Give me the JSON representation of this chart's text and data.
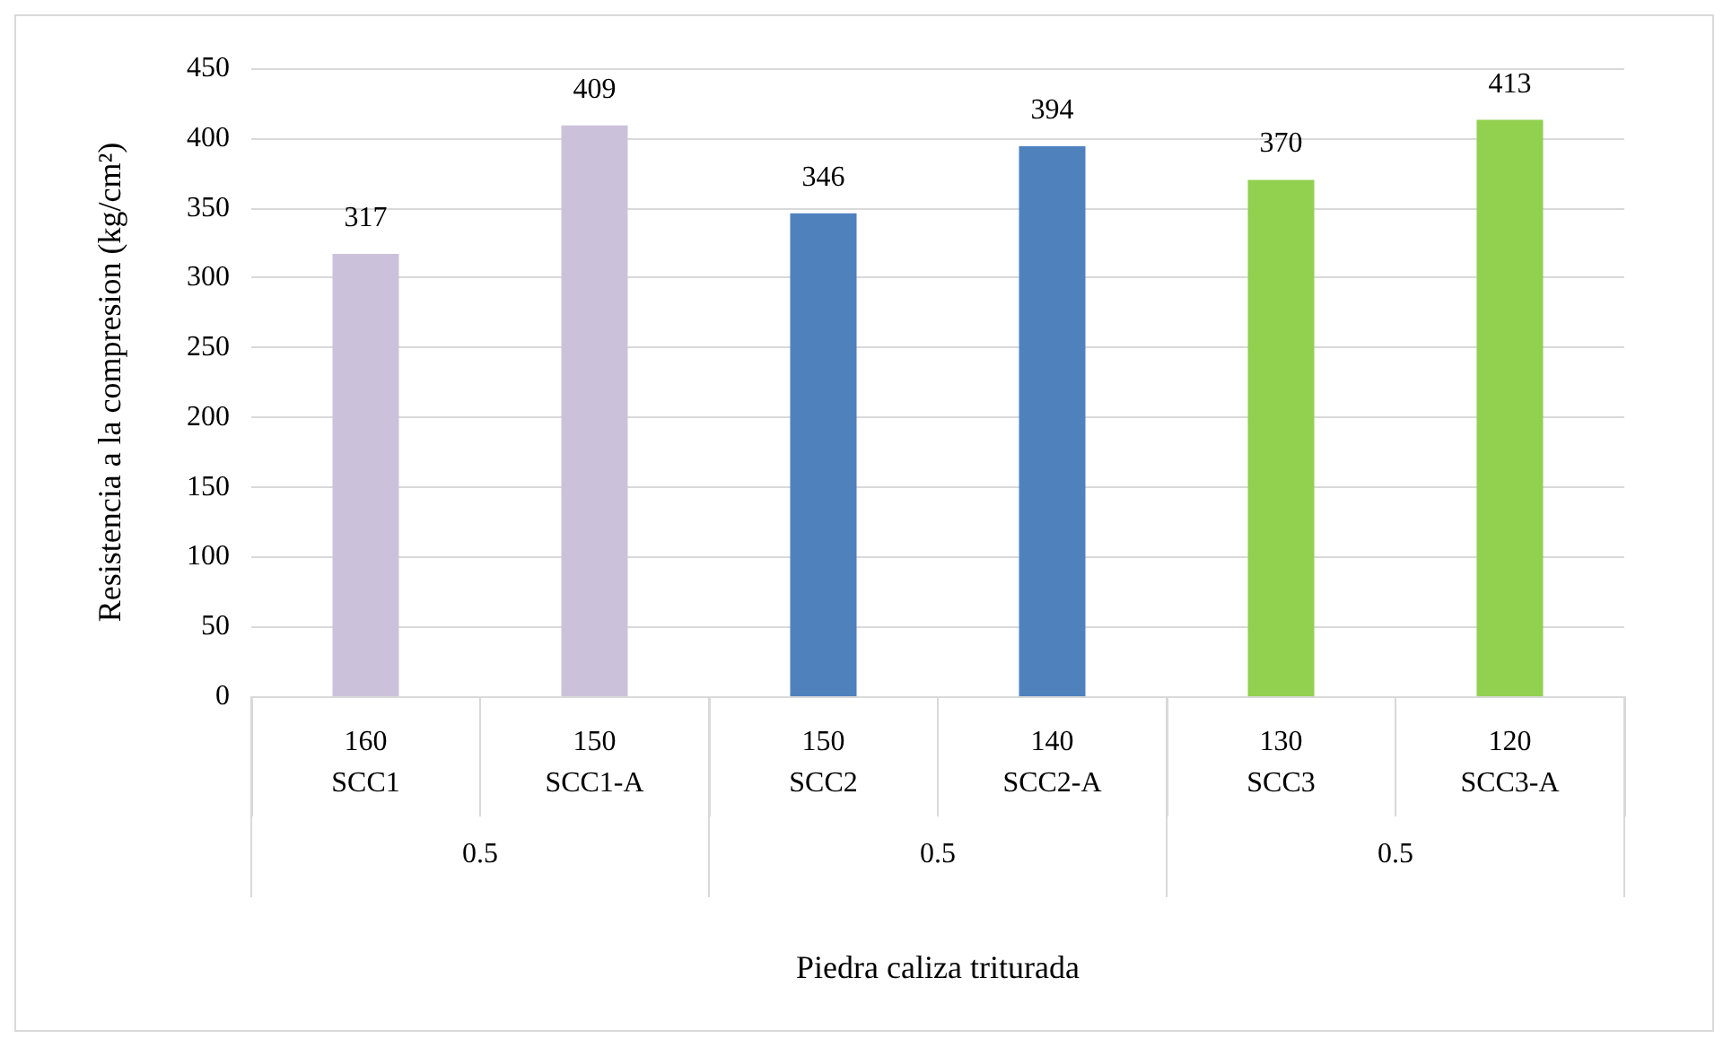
{
  "chart_data": {
    "type": "bar",
    "categories": [
      "160\nSCC1",
      "150\nSCC1-A",
      "150\nSCC2",
      "140\nSCC2-A",
      "130\nSCC3",
      "120\nSCC3-A"
    ],
    "values": [
      317,
      409,
      346,
      394,
      370,
      413
    ],
    "colors": [
      "#ccc1da",
      "#ccc1da",
      "#4f81bd",
      "#4f81bd",
      "#92d050",
      "#92d050"
    ],
    "ylabel": "Resistencia a la compresion (kg/cm²)",
    "xlabel": "Piedra caliza triturada",
    "annotations": [
      "0.5",
      "0.5",
      "0.5"
    ],
    "ylim": [
      0,
      450
    ],
    "yticks": [
      0,
      50,
      100,
      150,
      200,
      250,
      300,
      350,
      400,
      450
    ],
    "grid": "y",
    "data_labels": true
  }
}
